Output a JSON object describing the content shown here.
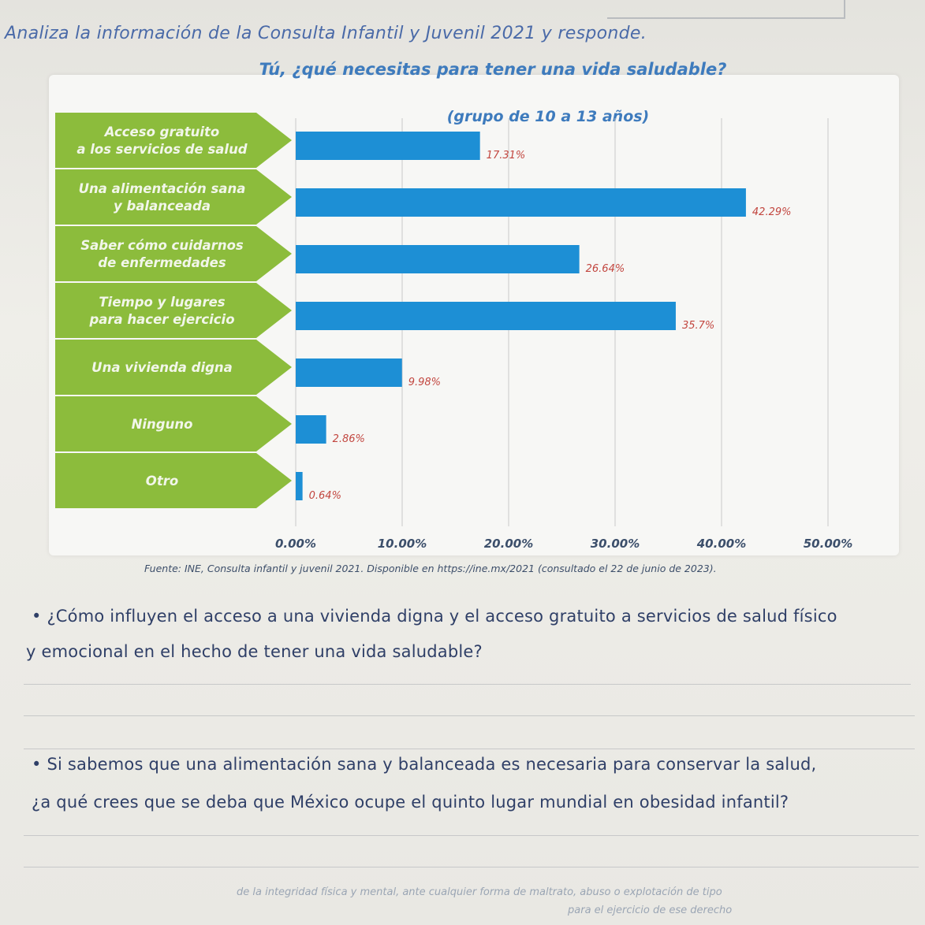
{
  "page": {
    "instruction": "Analiza la información de la Consulta Infantil y Juvenil 2021 y responde.",
    "source": "Fuente: INE, Consulta infantil y juvenil 2021. Disponible en https://ine.mx/2021 (consultado el 22 de junio de 2023)."
  },
  "questions": [
    {
      "line1": "• ¿Cómo influyen el acceso a una vivienda digna y el acceso gratuito a servicios de salud físico",
      "line2": "y emocional en el hecho de tener una vida saludable?"
    },
    {
      "line1": "• Si sabemos que una alimentación sana y balanceada es necesaria para conservar la salud,",
      "line2": "¿a qué crees que se deba que México ocupe el quinto lugar mundial en obesidad infantil?"
    }
  ],
  "footer": {
    "line1": "de la integridad física y mental, ante cualquier forma de maltrato, abuso o explotación de tipo",
    "line2": "para el ejercicio de ese derecho"
  },
  "colors": {
    "bar": "#1d8fd5",
    "label_bg": "#8cbc3c",
    "label_text": "#f2f6ea",
    "value_text": "#c2463f",
    "grid": "#c9c9c9"
  },
  "chart_data": {
    "type": "bar",
    "orientation": "horizontal",
    "title": "Tú, ¿qué necesitas para tener una vida saludable?",
    "subtitle": "(grupo de 10 a 13 años)",
    "categories": [
      [
        "Acceso gratuito",
        "a los servicios de salud"
      ],
      [
        "Una alimentación sana",
        "y balanceada"
      ],
      [
        "Saber cómo cuidarnos",
        "de enfermedades"
      ],
      [
        "Tiempo y lugares",
        "para hacer ejercicio"
      ],
      [
        "Una vivienda digna"
      ],
      [
        "Ninguno"
      ],
      [
        "Otro"
      ]
    ],
    "values": [
      17.31,
      42.29,
      26.64,
      35.7,
      9.98,
      2.86,
      0.64
    ],
    "value_labels": [
      "17.31%",
      "42.29%",
      "26.64%",
      "35.7%",
      "9.98%",
      "2.86%",
      "0.64%"
    ],
    "xlim": [
      0,
      50
    ],
    "xticks": [
      "0.00%",
      "10.00%",
      "20.00%",
      "30.00%",
      "40.00%",
      "50.00%"
    ],
    "grid": true
  }
}
